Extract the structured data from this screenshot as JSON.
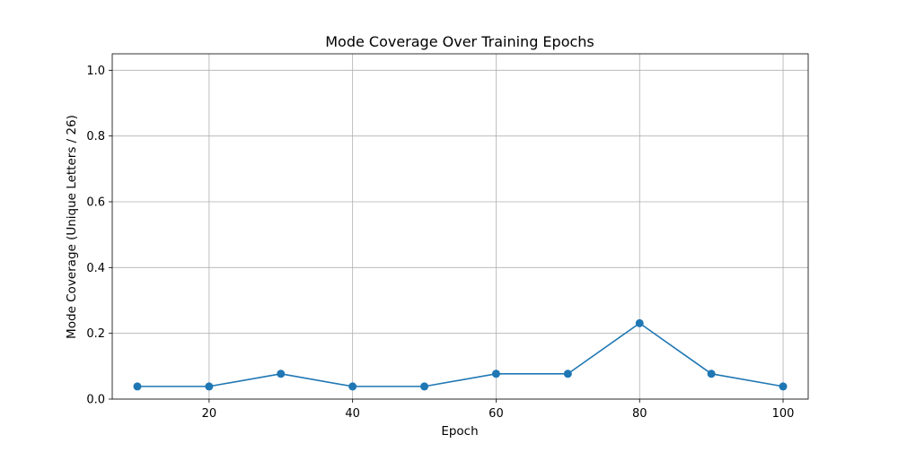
{
  "chart_data": {
    "type": "line",
    "title": "Mode Coverage Over Training Epochs",
    "xlabel": "Epoch",
    "ylabel": "Mode Coverage (Unique Letters / 26)",
    "xlim": [
      6.5,
      103.5
    ],
    "ylim": [
      0,
      1.05
    ],
    "x_ticks": [
      20,
      40,
      60,
      80,
      100
    ],
    "y_ticks": [
      0.0,
      0.2,
      0.4,
      0.6,
      0.8,
      1.0
    ],
    "grid": true,
    "series": [
      {
        "color": "#1f77b4",
        "marker": "circle",
        "x": [
          10,
          20,
          30,
          40,
          50,
          60,
          70,
          80,
          90,
          100
        ],
        "y": [
          0.0385,
          0.0385,
          0.0769,
          0.0385,
          0.0385,
          0.0769,
          0.0769,
          0.2308,
          0.0769,
          0.0385
        ]
      }
    ]
  }
}
